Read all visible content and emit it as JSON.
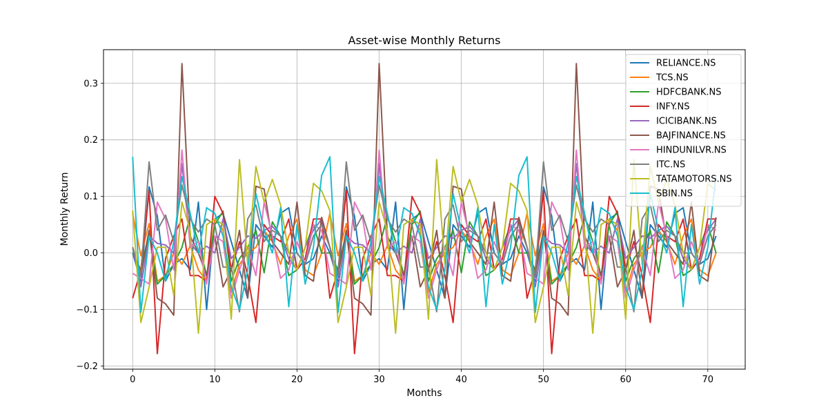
{
  "chart_data": {
    "type": "line",
    "title": "Asset-wise Monthly Returns",
    "xlabel": "Months",
    "ylabel": "Monthly Return",
    "xlim": [
      -3.55,
      74.55
    ],
    "ylim": [
      -0.2055,
      0.3595
    ],
    "xticks": [
      0,
      10,
      20,
      30,
      40,
      50,
      60,
      70
    ],
    "yticks": [
      -0.2,
      -0.1,
      0.0,
      0.1,
      0.2,
      0.3
    ],
    "xtick_labels": [
      "0",
      "10",
      "20",
      "30",
      "40",
      "50",
      "60",
      "70"
    ],
    "ytick_labels": [
      "−0.2",
      "−0.1",
      "0.0",
      "0.1",
      "0.2",
      "0.3"
    ],
    "grid": true,
    "legend_position": "top-right",
    "period": 24,
    "series": [
      {
        "name": "RELIANCE.NS",
        "color": "#1f77b4",
        "values": [
          0.0,
          -0.05,
          0.117,
          0.065,
          -0.05,
          -0.02,
          -0.01,
          -0.03,
          0.09,
          -0.1,
          0.06,
          0.07,
          0.02,
          -0.03,
          -0.08,
          0.05,
          0.03,
          0.01,
          0.07,
          0.08,
          0.0,
          -0.02,
          -0.01,
          0.03
        ]
      },
      {
        "name": "TCS.NS",
        "color": "#ff7f0e",
        "values": [
          0.07,
          -0.005,
          0.052,
          -0.05,
          -0.04,
          0.0,
          -0.02,
          0.013,
          -0.03,
          -0.05,
          0.06,
          0.04,
          -0.07,
          -0.02,
          0.0,
          0.01,
          0.04,
          0.02,
          -0.02,
          0.03,
          0.06,
          -0.03,
          -0.04,
          0.0
        ]
      },
      {
        "name": "HDFCBANK.NS",
        "color": "#2ca02c",
        "values": [
          0.0,
          -0.03,
          0.037,
          -0.055,
          -0.04,
          -0.02,
          0.01,
          0.065,
          0.02,
          -0.04,
          0.05,
          0.074,
          -0.05,
          -0.01,
          0.01,
          0.04,
          -0.035,
          0.055,
          0.03,
          -0.04,
          -0.03,
          0.01,
          0.05,
          0.0
        ]
      },
      {
        "name": "INFY.NS",
        "color": "#d62728",
        "values": [
          -0.08,
          -0.03,
          0.11,
          -0.178,
          -0.01,
          0.03,
          0.06,
          -0.04,
          -0.04,
          -0.05,
          0.1,
          0.07,
          -0.03,
          0.02,
          -0.04,
          -0.123,
          0.05,
          0.03,
          0.02,
          0.06,
          -0.03,
          -0.01,
          0.06,
          0.06
        ]
      },
      {
        "name": "ICICIBANK.NS",
        "color": "#9467bd",
        "values": [
          0.01,
          -0.06,
          0.03,
          0.017,
          0.014,
          0.0,
          0.158,
          0.017,
          0.0,
          0.012,
          0.0,
          0.06,
          -0.01,
          0.01,
          0.03,
          0.026,
          0.04,
          0.047,
          0.03,
          -0.01,
          -0.03,
          0.01,
          0.04,
          0.06
        ]
      },
      {
        "name": "BAJFINANCE.NS",
        "color": "#8c564b",
        "values": [
          0.01,
          -0.04,
          0.04,
          -0.08,
          -0.09,
          -0.11,
          0.335,
          0.03,
          0.0,
          -0.04,
          0.03,
          -0.06,
          -0.03,
          0.04,
          -0.08,
          0.118,
          0.113,
          0.02,
          0.0,
          -0.02,
          0.09,
          -0.04,
          -0.05,
          0.063
        ]
      },
      {
        "name": "HINDUNILVR.NS",
        "color": "#e377c2",
        "values": [
          -0.036,
          -0.045,
          -0.055,
          0.09,
          0.06,
          -0.03,
          0.182,
          0.01,
          0.02,
          -0.055,
          0.03,
          0.02,
          -0.08,
          -0.03,
          0.01,
          -0.04,
          0.09,
          0.03,
          -0.045,
          -0.03,
          0.02,
          -0.02,
          0.05,
          0.04
        ]
      },
      {
        "name": "ITC.NS",
        "color": "#7f7f7f",
        "values": [
          0.01,
          -0.04,
          0.161,
          0.04,
          0.067,
          0.02,
          0.12,
          0.06,
          0.037,
          0.06,
          0.05,
          -0.025,
          -0.025,
          -0.104,
          0.06,
          0.085,
          0.02,
          0.04,
          0.03,
          0.0,
          0.0,
          -0.02,
          0.03,
          0.05
        ]
      },
      {
        "name": "TATAMOTORS.NS",
        "color": "#bcbd22",
        "values": [
          0.075,
          -0.123,
          -0.06,
          0.01,
          0.01,
          -0.075,
          0.09,
          0.04,
          -0.142,
          0.05,
          0.06,
          0.05,
          -0.117,
          0.165,
          -0.02,
          0.153,
          0.09,
          0.13,
          0.085,
          0.0,
          -0.03,
          0.01,
          0.123,
          0.11
        ]
      },
      {
        "name": "SBIN.NS",
        "color": "#17becf",
        "values": [
          0.17,
          -0.105,
          0.03,
          0.0,
          -0.05,
          0.02,
          0.135,
          0.07,
          0.0,
          0.08,
          0.07,
          0.03,
          -0.06,
          -0.1,
          -0.03,
          0.105,
          0.04,
          0.0,
          0.08,
          -0.095,
          0.05,
          -0.055,
          0.01,
          0.137
        ]
      }
    ]
  }
}
